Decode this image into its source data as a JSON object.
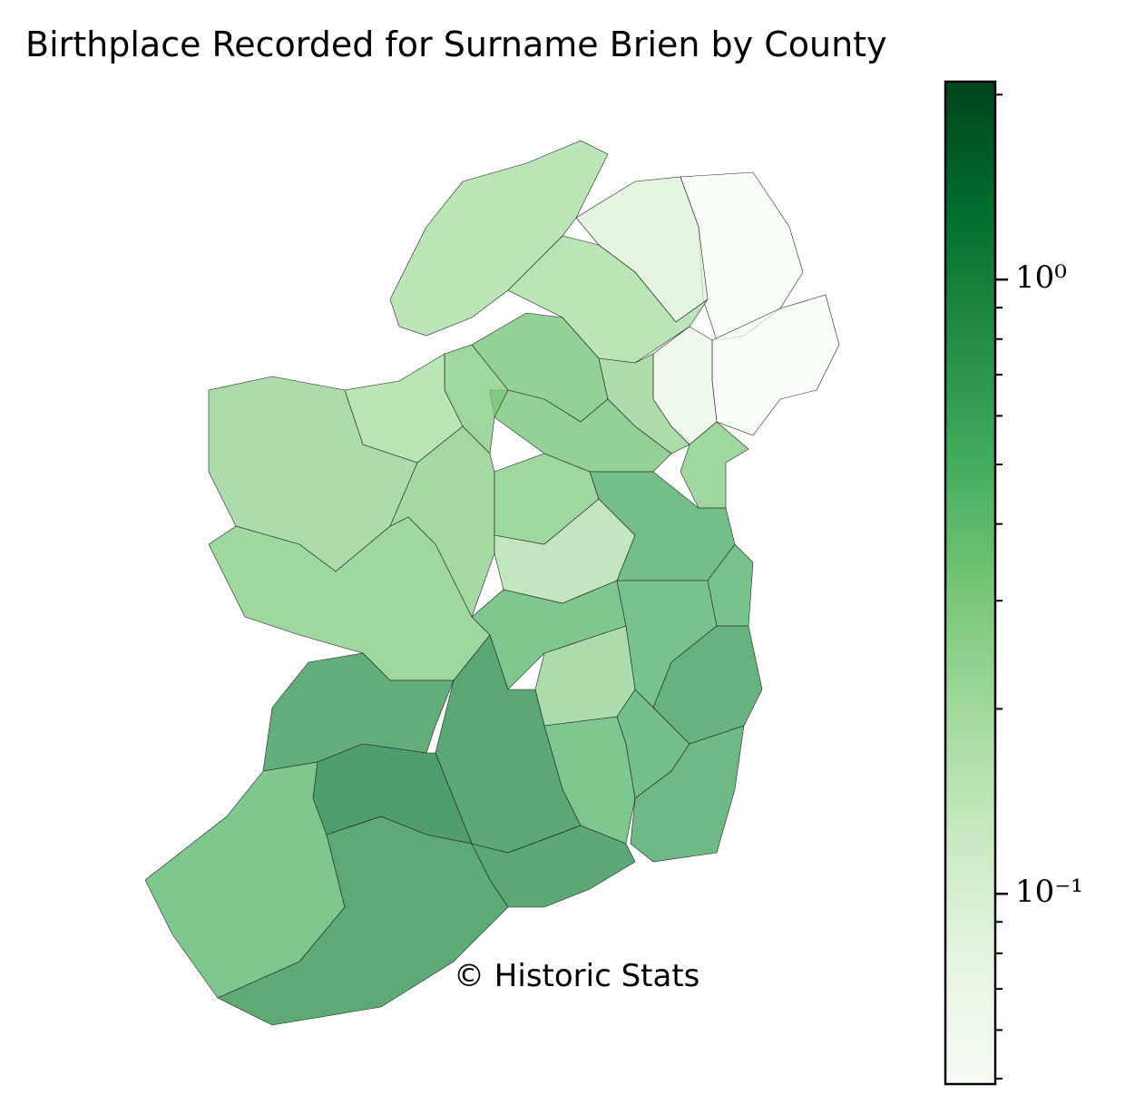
{
  "chart_data": {
    "type": "choropleth",
    "title": "Birthplace Recorded for Surname Brien by County",
    "annotation": "© Historic Stats",
    "values": [
      0.05,
      0.05,
      0.09,
      0.2,
      0.07,
      0.35,
      0.2,
      0.25,
      0.3,
      0.35,
      0.3,
      0.2,
      0.25,
      0.28,
      0.3,
      0.18,
      0.55,
      0.5,
      0.3,
      0.45,
      0.5,
      0.7,
      0.25,
      0.8,
      0.9,
      0.45,
      0.55,
      0.6,
      1.1,
      0.9,
      0.45,
      0.85
    ],
    "colormap": "Greens",
    "log": true,
    "clim": [
      0.049,
      2.1
    ],
    "ticks": [
      {
        "value": 1,
        "label": "10⁰"
      },
      {
        "value": 0.1,
        "label": "10⁻¹"
      }
    ],
    "minor_ticks": [
      0.05,
      0.06,
      0.07,
      0.08,
      0.09,
      0.2,
      0.3,
      0.4,
      0.5,
      0.6,
      0.7,
      0.8,
      0.9,
      2
    ]
  }
}
